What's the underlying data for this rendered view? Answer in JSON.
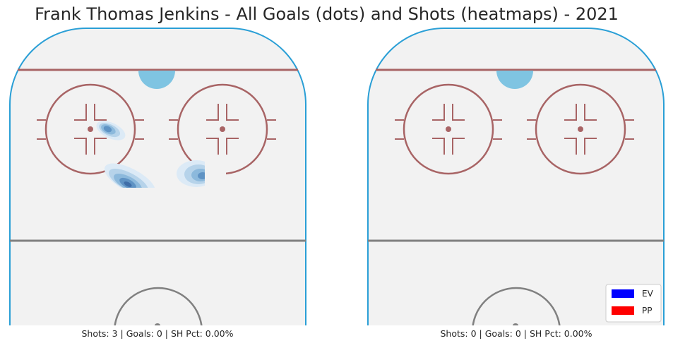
{
  "title": "Frank Thomas Jenkins - All Goals (dots) and Shots (heatmaps) - 2021",
  "chart_data": [
    {
      "type": "heatmap",
      "name": "left-rink",
      "caption": "Shots: 3 | Goals: 0 | SH Pct: 0.00%",
      "shots": 3,
      "goals": 0,
      "sh_pct": "0.00%",
      "goal_dots": []
    },
    {
      "type": "heatmap",
      "name": "right-rink",
      "caption": "Shots: 0 | Goals: 0 | SH Pct: 0.00%",
      "shots": 0,
      "goals": 0,
      "sh_pct": "0.00%",
      "goal_dots": []
    }
  ],
  "legend": [
    {
      "label": "EV",
      "color": "#0000ff"
    },
    {
      "label": "PP",
      "color": "#ff0000"
    }
  ],
  "colors": {
    "board": "#2a9fd6",
    "ice": "#f2f2f2",
    "red_line": "#a86465",
    "center_line": "#808080",
    "crease": "#7fc4e2",
    "heat": [
      "#dceaf6",
      "#b6d3ea",
      "#8cb9dc",
      "#5f93c4",
      "#3f6ea8"
    ]
  }
}
